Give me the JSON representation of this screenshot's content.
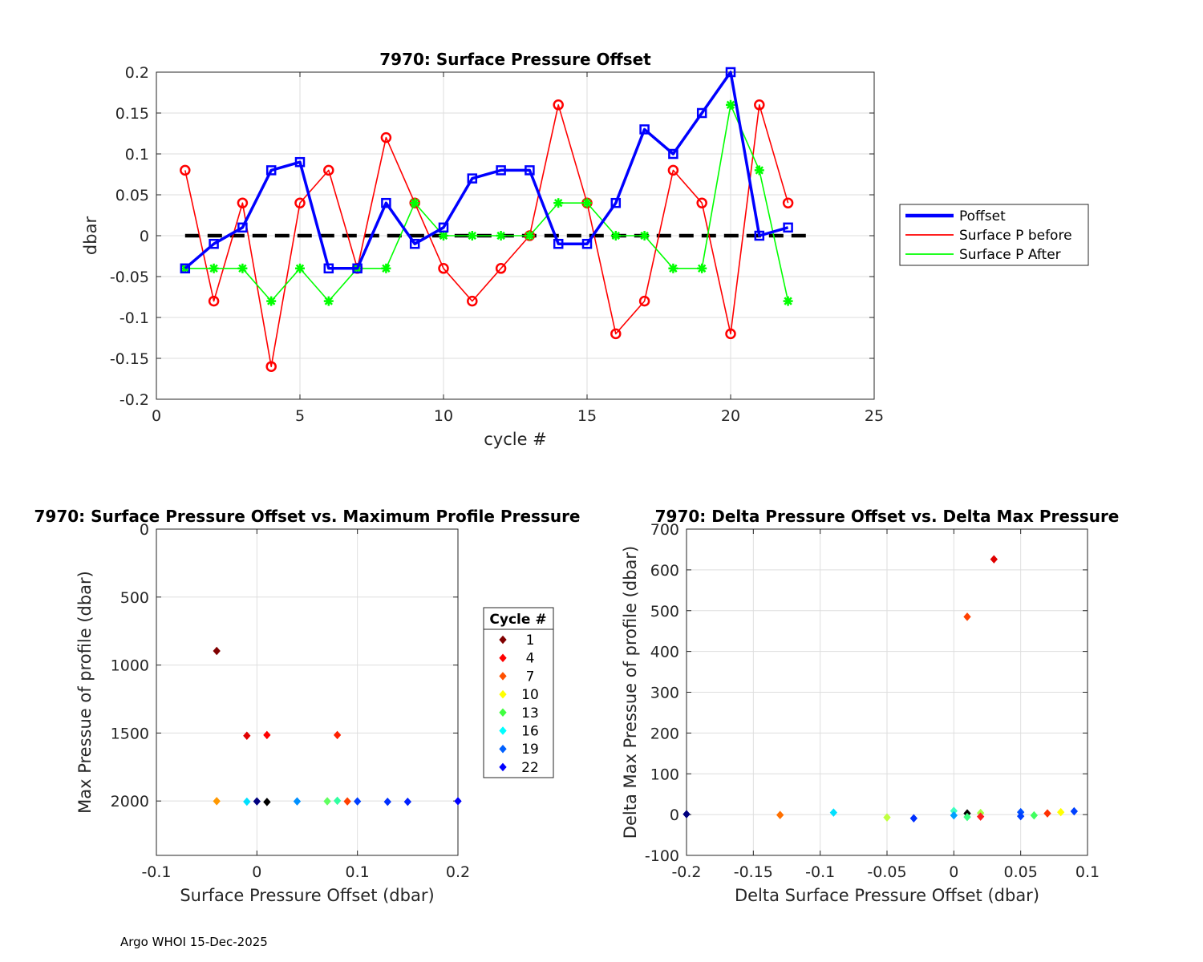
{
  "footer": "Argo WHOI 15-Dec-2025",
  "colors": {
    "poffset": "#0000ff",
    "before": "#ff0000",
    "after": "#00ff00",
    "zero_line": "#000000",
    "grid": "#dedede",
    "axis": "#262626"
  },
  "chart_data": [
    {
      "type": "line",
      "title": "7970: Surface Pressure Offset",
      "xlabel": "cycle #",
      "ylabel": "dbar",
      "xlim": [
        0,
        25
      ],
      "ylim": [
        -0.2,
        0.2
      ],
      "xticks": [
        0,
        5,
        10,
        15,
        20,
        25
      ],
      "yticks": [
        -0.2,
        -0.15,
        -0.1,
        -0.05,
        0,
        0.05,
        0.1,
        0.15,
        0.2
      ],
      "ytick_labels": [
        "-0.2",
        "-0.15",
        "-0.1",
        "-0.05",
        "0",
        "0.05",
        "0.1",
        "0.15",
        "0.2"
      ],
      "grid": true,
      "legend_position": "outside-right",
      "zero_line": {
        "x": [
          1,
          22.8
        ],
        "y": 0
      },
      "x": [
        1,
        2,
        3,
        4,
        5,
        6,
        7,
        8,
        9,
        10,
        11,
        12,
        13,
        14,
        15,
        16,
        17,
        18,
        19,
        20,
        21,
        22
      ],
      "series": [
        {
          "name": "Poffset",
          "marker": "square",
          "values": [
            -0.04,
            -0.01,
            0.01,
            0.08,
            0.09,
            -0.04,
            -0.04,
            0.04,
            -0.01,
            0.01,
            0.07,
            0.08,
            0.08,
            -0.01,
            -0.01,
            0.04,
            0.13,
            0.1,
            0.15,
            0.2,
            0.0,
            0.01
          ]
        },
        {
          "name": "Surface P before",
          "marker": "circle",
          "values": [
            0.08,
            -0.08,
            0.04,
            -0.16,
            0.04,
            0.08,
            -0.04,
            0.12,
            0.04,
            -0.04,
            -0.08,
            -0.04,
            0.0,
            0.16,
            0.04,
            -0.12,
            -0.08,
            0.08,
            0.04,
            -0.12,
            0.16,
            0.04
          ]
        },
        {
          "name": "Surface P After",
          "marker": "asterisk",
          "values": [
            -0.04,
            -0.04,
            -0.04,
            -0.08,
            -0.04,
            -0.08,
            -0.04,
            -0.04,
            0.04,
            0.0,
            0.0,
            0.0,
            0.0,
            0.04,
            0.04,
            0.0,
            0.0,
            -0.04,
            -0.04,
            0.16,
            0.08,
            -0.08
          ]
        }
      ]
    },
    {
      "type": "scatter",
      "title": "7970: Surface Pressure Offset vs. Maximum Profile Pressure",
      "xlabel": "Surface Pressure Offset (dbar)",
      "ylabel": "Max Pressue of profile (dbar)",
      "xlim": [
        -0.1,
        0.2
      ],
      "ylim": [
        2400,
        0
      ],
      "y_reversed": true,
      "xticks": [
        -0.1,
        0,
        0.1,
        0.2
      ],
      "xtick_labels": [
        "-0.1",
        "0",
        "0.1",
        "0.2"
      ],
      "yticks": [
        0,
        500,
        1000,
        1500,
        2000
      ],
      "grid": true,
      "legend_title": "Cycle #",
      "legend_position": "outside-right",
      "legend_entries": [
        {
          "label": "1",
          "color": "#800000"
        },
        {
          "label": "4",
          "color": "#ff0000"
        },
        {
          "label": "7",
          "color": "#ff5000"
        },
        {
          "label": "10",
          "color": "#ffff00"
        },
        {
          "label": "13",
          "color": "#40ff40"
        },
        {
          "label": "16",
          "color": "#00ffff"
        },
        {
          "label": "19",
          "color": "#0060ff"
        },
        {
          "label": "22",
          "color": "#0000ff"
        }
      ],
      "points": [
        {
          "cycle": 1,
          "x": -0.04,
          "y": 896,
          "color": "#800000"
        },
        {
          "cycle": 2,
          "x": -0.01,
          "y": 1520,
          "color": "#e00000"
        },
        {
          "cycle": 3,
          "x": 0.01,
          "y": 1515,
          "color": "#ff0000"
        },
        {
          "cycle": 4,
          "x": 0.08,
          "y": 1515,
          "color": "#ff2000"
        },
        {
          "cycle": 5,
          "x": 0.09,
          "y": 2003,
          "color": "#ff4000"
        },
        {
          "cycle": 6,
          "x": -0.04,
          "y": 2001,
          "color": "#ff9800"
        },
        {
          "cycle": 7,
          "x": 0.0,
          "y": 2003,
          "color": "#000080"
        },
        {
          "cycle": 8,
          "x": 0.01,
          "y": 2007,
          "color": "#000000"
        },
        {
          "cycle": 9,
          "x": 0.07,
          "y": 2002,
          "color": "#60ff60"
        },
        {
          "cycle": 10,
          "x": 0.08,
          "y": 1998,
          "color": "#30ffa0"
        },
        {
          "cycle": 11,
          "x": -0.01,
          "y": 2005,
          "color": "#00e0ff"
        },
        {
          "cycle": 12,
          "x": 0.04,
          "y": 2003,
          "color": "#0090ff"
        },
        {
          "cycle": 13,
          "x": 0.1,
          "y": 2003,
          "color": "#0040ff"
        },
        {
          "cycle": 14,
          "x": 0.13,
          "y": 2006,
          "color": "#0030ff"
        },
        {
          "cycle": 15,
          "x": 0.15,
          "y": 2006,
          "color": "#0020ff"
        },
        {
          "cycle": 16,
          "x": 0.2,
          "y": 2001,
          "color": "#0000ff"
        }
      ]
    },
    {
      "type": "scatter",
      "title": "7970: Delta Pressure Offset vs. Delta Max Pressure",
      "xlabel": "Delta Surface Pressure Offset (dbar)",
      "ylabel": "Delta Max Pressue of profile (dbar)",
      "xlim": [
        -0.2,
        0.1
      ],
      "ylim": [
        -100,
        700
      ],
      "xticks": [
        -0.2,
        -0.15,
        -0.1,
        -0.05,
        0,
        0.05,
        0.1
      ],
      "xtick_labels": [
        "-0.2",
        "-0.15",
        "-0.1",
        "-0.05",
        "0",
        "0.05",
        "0.1"
      ],
      "yticks": [
        -100,
        0,
        100,
        200,
        300,
        400,
        500,
        600,
        700
      ],
      "grid": true,
      "points": [
        {
          "x": 0.03,
          "y": 626,
          "color": "#e00000"
        },
        {
          "x": 0.01,
          "y": 485,
          "color": "#ff4000"
        },
        {
          "x": -0.2,
          "y": 1,
          "color": "#000080"
        },
        {
          "x": -0.13,
          "y": -1,
          "color": "#ff7000"
        },
        {
          "x": -0.09,
          "y": 5,
          "color": "#00e0ff"
        },
        {
          "x": -0.05,
          "y": -7,
          "color": "#c0ff40"
        },
        {
          "x": -0.03,
          "y": -9,
          "color": "#0030ff"
        },
        {
          "x": 0.0,
          "y": 9,
          "color": "#40ffc0"
        },
        {
          "x": 0.0,
          "y": -2,
          "color": "#00a0ff"
        },
        {
          "x": 0.01,
          "y": 3,
          "color": "#000000"
        },
        {
          "x": 0.01,
          "y": -6,
          "color": "#40ff80"
        },
        {
          "x": 0.02,
          "y": 4,
          "color": "#a0ff40"
        },
        {
          "x": 0.02,
          "y": -5,
          "color": "#ff2020"
        },
        {
          "x": 0.05,
          "y": 6,
          "color": "#0050ff"
        },
        {
          "x": 0.05,
          "y": -4,
          "color": "#0040ff"
        },
        {
          "x": 0.06,
          "y": -2,
          "color": "#40ff60"
        },
        {
          "x": 0.07,
          "y": 3,
          "color": "#ff3000"
        },
        {
          "x": 0.08,
          "y": 6,
          "color": "#ffff00"
        },
        {
          "x": 0.09,
          "y": 8,
          "color": "#0040ff"
        }
      ]
    }
  ]
}
